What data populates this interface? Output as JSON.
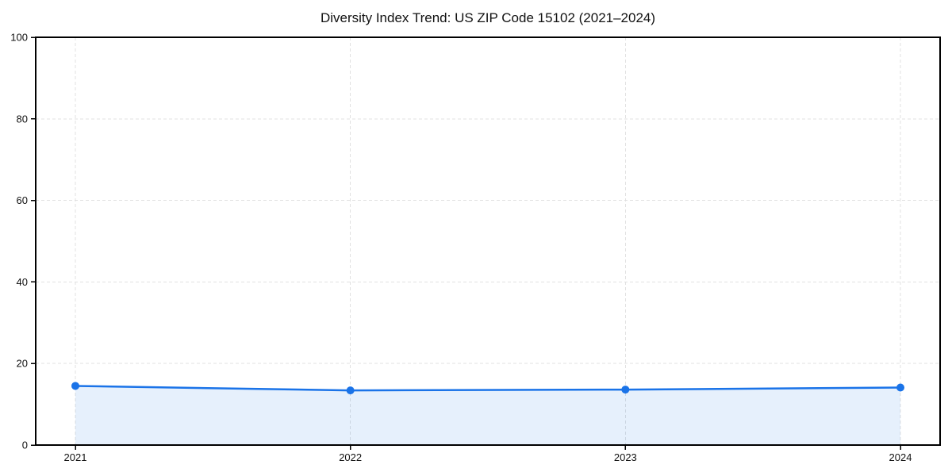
{
  "chart_data": {
    "type": "area",
    "title": "Diversity Index Trend: US ZIP Code 15102 (2021–2024)",
    "categories": [
      "2021",
      "2022",
      "2023",
      "2024"
    ],
    "values": [
      14.5,
      13.4,
      13.6,
      14.1
    ],
    "xlabel": "",
    "ylabel": "",
    "ylim": [
      0,
      100
    ],
    "yticks": [
      0,
      20,
      40,
      60,
      80,
      100
    ],
    "grid": "on",
    "grid_style": "dashed",
    "legend": "off",
    "colors": {
      "line": "#1a73e8",
      "marker": "#1a73e8",
      "fill": "#1a73e8",
      "fill_opacity": "0.11",
      "grid": "#e1e1e1",
      "axis": "#000000",
      "text": "#111111",
      "background": "#ffffff"
    }
  }
}
